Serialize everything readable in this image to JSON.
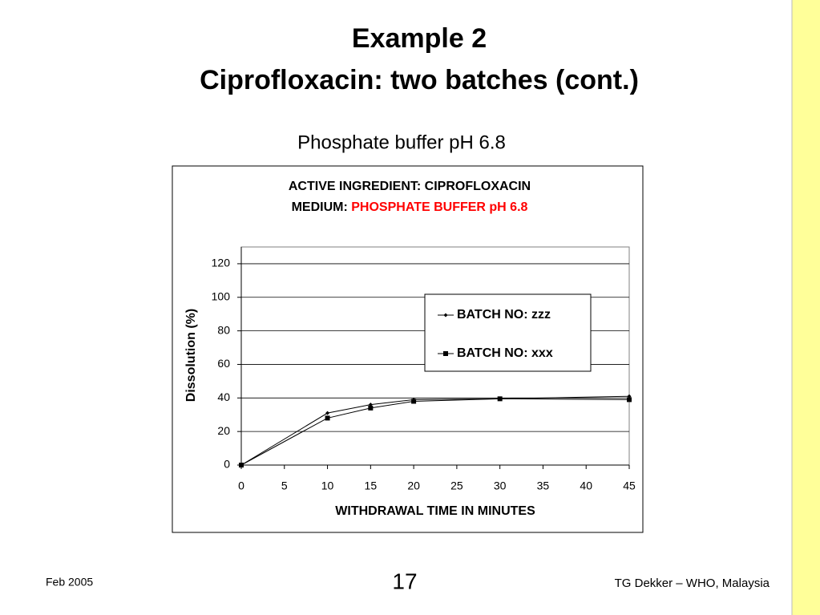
{
  "slide": {
    "title_line1": "Example 2",
    "title_line2": "Ciprofloxacin: two batches (cont.)",
    "subtitle": "Phosphate buffer pH 6.8",
    "footer_left": "Feb 2005",
    "page_number": "17",
    "footer_right": "TG Dekker – WHO, Malaysia"
  },
  "chart_data": {
    "type": "line",
    "title": "ACTIVE INGREDIENT:  CIPROFLOXACIN",
    "subtitle_label": "MEDIUM:",
    "subtitle": "PHOSPHATE BUFFER pH 6.8",
    "subtitle_color": "#ff0000",
    "x_label": "WITHDRAWAL TIME IN MINUTES",
    "y_label": "Dissolution (%)",
    "x": [
      0,
      10,
      15,
      20,
      30,
      45
    ],
    "series": [
      {
        "name": "BATCH NO: zzz",
        "color": "#000000",
        "marker": "diamond",
        "values": [
          0,
          31,
          36,
          39,
          39.5,
          41
        ]
      },
      {
        "name": "BATCH NO:  xxx",
        "color": "#000000",
        "marker": "square",
        "values": [
          0,
          28,
          34,
          38,
          39.5,
          39
        ]
      }
    ],
    "xlim": [
      0,
      45
    ],
    "xticks": [
      0,
      5,
      10,
      15,
      20,
      25,
      30,
      35,
      40,
      45
    ],
    "ylim": [
      0,
      130
    ],
    "yticks": [
      0,
      20,
      40,
      60,
      80,
      100,
      120
    ],
    "grid": true,
    "legend": "right"
  }
}
